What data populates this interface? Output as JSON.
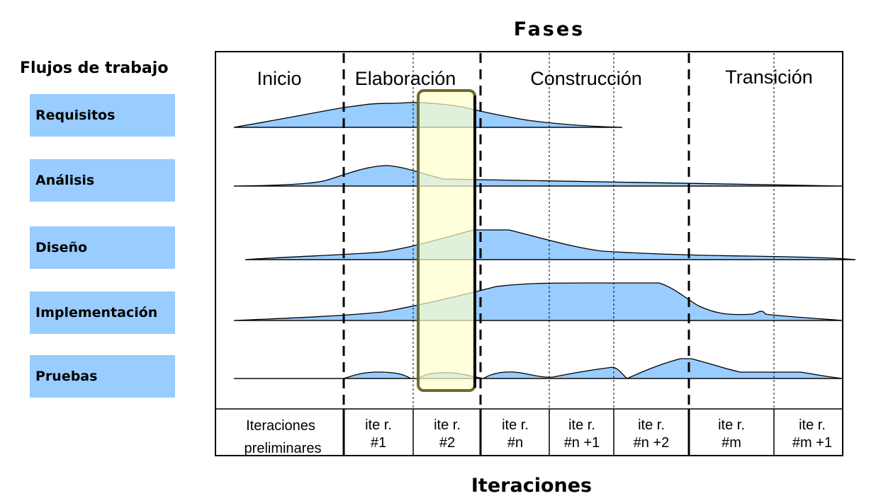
{
  "header": {
    "title": "Fases"
  },
  "workflows": {
    "title": "Flujos de trabajo",
    "items": [
      "Requisitos",
      "Análisis",
      "Diseño",
      "Implementación",
      "Pruebas"
    ]
  },
  "phases": [
    "Inicio",
    "Elaboración",
    "Construcción",
    "Transición"
  ],
  "iterations": [
    {
      "line1": "Iteraciones",
      "line2": "preliminares"
    },
    {
      "line1": "ite r.",
      "line2": "#1"
    },
    {
      "line1": "ite r.",
      "line2": "#2"
    },
    {
      "line1": "ite r.",
      "line2": "#n"
    },
    {
      "line1": "ite r.",
      "line2": "#n +1"
    },
    {
      "line1": "ite r.",
      "line2": "#n +2"
    },
    {
      "line1": "ite r.",
      "line2": "#m"
    },
    {
      "line1": "ite r.",
      "line2": "#m +1"
    }
  ],
  "footer": {
    "title": "Iteraciones"
  },
  "colors": {
    "workflow_box": "#99ccff",
    "hump_fill": "#99ccff",
    "highlight_fill": "#ffffcc",
    "highlight_border": "#7a7a3a",
    "frame": "#000000"
  }
}
